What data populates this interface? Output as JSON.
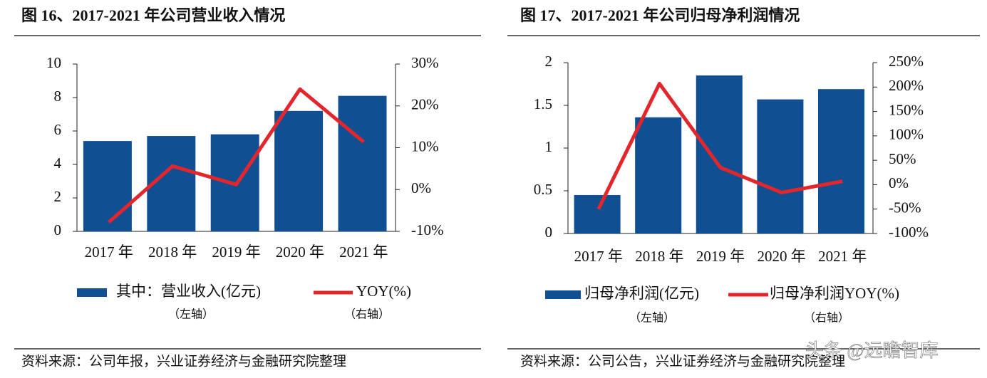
{
  "chart_data": [
    {
      "type": "bar",
      "title": "图 16、2017-2021 年公司营业收入情况",
      "categories": [
        "2017 年",
        "2018 年",
        "2019 年",
        "2020 年",
        "2021 年"
      ],
      "series": [
        {
          "name": "其中：营业收入(亿元)",
          "note": "（左轴）",
          "type": "bar",
          "color": "#114f93",
          "values": [
            5.4,
            5.7,
            5.8,
            7.2,
            8.1
          ]
        },
        {
          "name": "YOY(%)",
          "note": "（右轴）",
          "type": "line",
          "axis": "y2",
          "color": "#e3262b",
          "values": [
            -7.8,
            5.6,
            1.2,
            24,
            11.4
          ]
        }
      ],
      "ylim": [
        0,
        10
      ],
      "yticks": [
        0,
        2,
        4,
        6,
        8,
        10
      ],
      "y2lim": [
        -10,
        30
      ],
      "y2ticks": [
        {
          "value": -10,
          "label": "-10%"
        },
        {
          "value": 0,
          "label": "0%"
        },
        {
          "value": 10,
          "label": "10%"
        },
        {
          "value": 20,
          "label": "20%"
        },
        {
          "value": 30,
          "label": "30%"
        }
      ],
      "source": "资料来源：公司年报，兴业证券经济与金融研究院整理"
    },
    {
      "type": "bar",
      "title": "图 17、2017-2021 年公司归母净利润情况",
      "categories": [
        "2017 年",
        "2018 年",
        "2019 年",
        "2020 年",
        "2021 年"
      ],
      "series": [
        {
          "name": "归母净利润(亿元)",
          "note": "（左轴）",
          "type": "bar",
          "color": "#114f93",
          "values": [
            0.45,
            1.36,
            1.85,
            1.57,
            1.69
          ]
        },
        {
          "name": "归母净利润YOY(%)",
          "note": "（右轴）",
          "type": "line",
          "axis": "y2",
          "color": "#e3262b",
          "values": [
            -50,
            207,
            35,
            -16,
            7
          ]
        }
      ],
      "ylim": [
        0,
        2
      ],
      "yticks": [
        0,
        0.5,
        1,
        1.5,
        2
      ],
      "y2lim": [
        -100,
        250
      ],
      "y2ticks": [
        {
          "value": -100,
          "label": "-100%"
        },
        {
          "value": -50,
          "label": "-50%"
        },
        {
          "value": 0,
          "label": "0%"
        },
        {
          "value": 50,
          "label": "50%"
        },
        {
          "value": 100,
          "label": "100%"
        },
        {
          "value": 150,
          "label": "150%"
        },
        {
          "value": 200,
          "label": "200%"
        },
        {
          "value": 250,
          "label": "250%"
        }
      ],
      "source": "资料来源：公司公告，兴业证券经济与金融研究院整理"
    }
  ],
  "watermark": "头条 @远瞻智库"
}
